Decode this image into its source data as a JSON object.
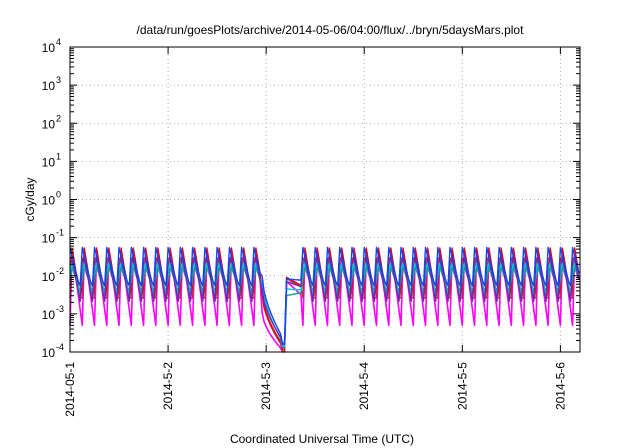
{
  "chart_data": {
    "type": "line",
    "title": "/data/run/goesPlots/archive/2014-05-06/04:00/flux/../bryn/5daysMars.plot",
    "xlabel": "Coordinated Universal Time (UTC)",
    "ylabel": "cGy/day",
    "yscale": "log",
    "ylim": [
      0.0001,
      10000
    ],
    "xlim": [
      "2014-05-01T00:00",
      "2014-05-06T04:48"
    ],
    "grid": true,
    "x_ticks": [
      "2014-05-1",
      "2014-5-2",
      "2014-5-3",
      "2014-5-4",
      "2014-5-5",
      "2014-5-6"
    ],
    "y_ticks": [
      {
        "base": "10",
        "exp": "-4"
      },
      {
        "base": "10",
        "exp": "-3"
      },
      {
        "base": "10",
        "exp": "-2"
      },
      {
        "base": "10",
        "exp": "-1"
      },
      {
        "base": "10",
        "exp": "0"
      },
      {
        "base": "10",
        "exp": "1"
      },
      {
        "base": "10",
        "exp": "2"
      },
      {
        "base": "10",
        "exp": "3"
      },
      {
        "base": "10",
        "exp": "4"
      }
    ],
    "series": [
      {
        "color": "#ff00ff",
        "peak": 0.05,
        "trough": 0.0005
      },
      {
        "color": "#b8343a",
        "peak": 0.058,
        "trough": 0.0014
      },
      {
        "color": "#e8001c",
        "peak": 0.062,
        "trough": 0.0016
      },
      {
        "color": "#0aa08a",
        "peak": 0.02,
        "trough": 0.0032
      },
      {
        "color": "#00c8e6",
        "peak": 0.03,
        "trough": 0.0026
      },
      {
        "color": "#6a2ca8",
        "peak": 0.048,
        "trough": 0.002
      },
      {
        "color": "#1444ee",
        "peak": 0.055,
        "trough": 0.0045
      }
    ],
    "pattern": {
      "period_hours": 3,
      "drop_start": "2014-05-02T23:00",
      "drop_end": "2014-05-03T04:48",
      "drop_min": 9e-05
    }
  }
}
